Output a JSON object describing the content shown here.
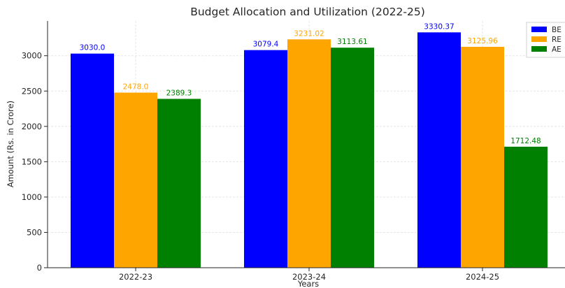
{
  "chart_data": {
    "type": "bar",
    "title": "Budget Allocation and Utilization (2022-25)",
    "xlabel": "Years",
    "ylabel": "Amount (Rs. in Crore)",
    "categories": [
      "2022-23",
      "2023-24",
      "2024-25"
    ],
    "series": [
      {
        "name": "BE",
        "color": "#0000ff",
        "values": [
          3030.0,
          3079.4,
          3330.37
        ],
        "labels": [
          "3030.0",
          "3079.4",
          "3330.37"
        ]
      },
      {
        "name": "RE",
        "color": "#ffa500",
        "values": [
          2478.0,
          3231.02,
          3125.96
        ],
        "labels": [
          "2478.0",
          "3231.02",
          "3125.96"
        ]
      },
      {
        "name": "AE",
        "color": "#008000",
        "values": [
          2389.3,
          3113.61,
          1712.48
        ],
        "labels": [
          "2389.3",
          "3113.61",
          "1712.48"
        ]
      }
    ],
    "ylim": [
      0,
      3400
    ],
    "yticks": [
      0,
      500,
      1000,
      1500,
      2000,
      2500,
      3000
    ],
    "grid": true,
    "legend_position": "top-right"
  }
}
